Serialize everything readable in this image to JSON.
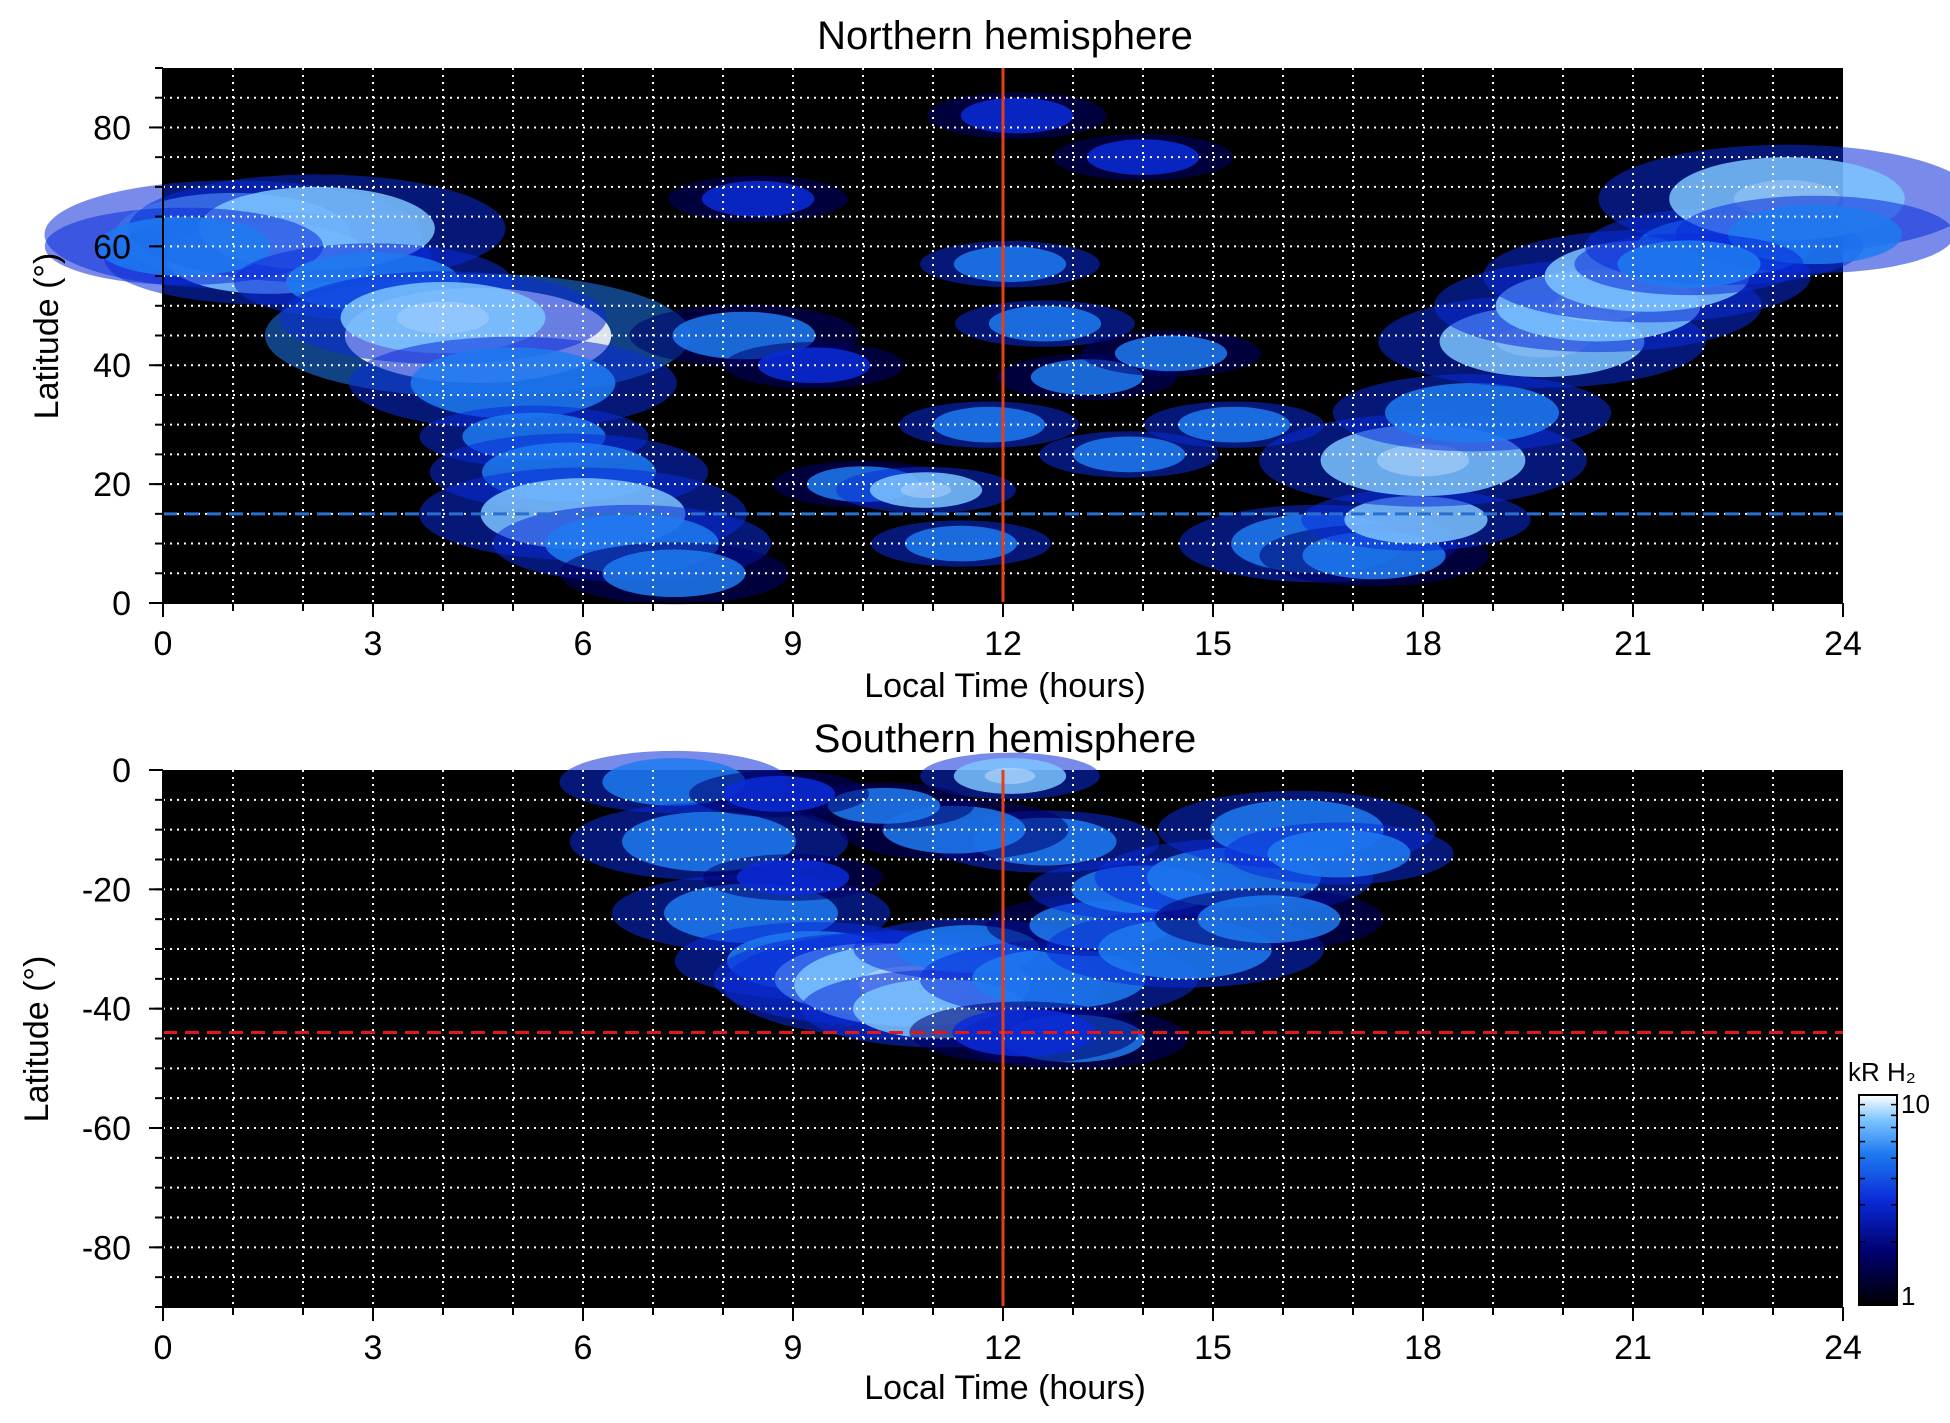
{
  "colors": {
    "background": "#000000",
    "grid": "#ffffff",
    "noon_line": "#e2401c",
    "north_dashed_line": "#2a6fd0",
    "south_dashed_line": "#e01818",
    "colormap": [
      "#000000",
      "#00006e",
      "#0a2bd8",
      "#1f7af0",
      "#7cc4ff",
      "#ffffff"
    ]
  },
  "chart_data": [
    {
      "type": "heatmap",
      "title": "Northern hemisphere",
      "xlabel": "Local Time (hours)",
      "ylabel": "Latitude (°)",
      "xlim": [
        0,
        24
      ],
      "ylim": [
        0,
        90
      ],
      "xticks": [
        0,
        3,
        6,
        9,
        12,
        15,
        18,
        21,
        24
      ],
      "xtick_labels": [
        "0",
        "3",
        "6",
        "9",
        "12",
        "15",
        "18",
        "21",
        "24"
      ],
      "yticks": [
        0,
        20,
        40,
        60,
        80
      ],
      "ytick_labels": [
        "0",
        "20",
        "40",
        "60",
        "80"
      ],
      "grid": true,
      "grid_x_step": 1,
      "grid_y_step": 5,
      "noon_line_x": 12,
      "dashed_line_y": 15,
      "dashed_line_color": "blue",
      "emission_zone": "bright auroral arcs near 60–75° at local times 0–5 and 19–24; patchy emission between 0–55° latitude from about 5 to 18 h",
      "intensity_blobs": [
        [
          1.0,
          62,
          7,
          0.72
        ],
        [
          1.5,
          58,
          6,
          0.75
        ],
        [
          2.2,
          63,
          7,
          0.7
        ],
        [
          0.3,
          60,
          5,
          0.55
        ],
        [
          3.0,
          54,
          5,
          0.6
        ],
        [
          4.5,
          45,
          8,
          0.92
        ],
        [
          4.0,
          48,
          6,
          0.75
        ],
        [
          5.0,
          37,
          6,
          0.62
        ],
        [
          5.3,
          28,
          4,
          0.55
        ],
        [
          5.8,
          22,
          5,
          0.55
        ],
        [
          6.0,
          15,
          6,
          0.7
        ],
        [
          6.7,
          10,
          5,
          0.58
        ],
        [
          7.3,
          5,
          4,
          0.5
        ],
        [
          8.3,
          45,
          4,
          0.5
        ],
        [
          9.3,
          40,
          3,
          0.45
        ],
        [
          10.0,
          20,
          3,
          0.5
        ],
        [
          10.9,
          19,
          3,
          0.8
        ],
        [
          11.4,
          10,
          3,
          0.68
        ],
        [
          11.8,
          30,
          3,
          0.6
        ],
        [
          12.1,
          57,
          3,
          0.62
        ],
        [
          12.6,
          47,
          3,
          0.55
        ],
        [
          13.2,
          38,
          3,
          0.5
        ],
        [
          13.8,
          25,
          3,
          0.55
        ],
        [
          14.4,
          42,
          3,
          0.5
        ],
        [
          15.3,
          30,
          3,
          0.55
        ],
        [
          16.5,
          10,
          5,
          0.55
        ],
        [
          17.3,
          8,
          4,
          0.5
        ],
        [
          17.9,
          14,
          4,
          0.7
        ],
        [
          18.0,
          24,
          6,
          0.82
        ],
        [
          18.7,
          32,
          5,
          0.6
        ],
        [
          19.7,
          44,
          6,
          0.72
        ],
        [
          20.5,
          50,
          6,
          0.75
        ],
        [
          21.2,
          55,
          6,
          0.7
        ],
        [
          22.3,
          60,
          5,
          0.65
        ],
        [
          23.2,
          68,
          7,
          0.75
        ],
        [
          23.6,
          62,
          5,
          0.6
        ],
        [
          21.8,
          57,
          4,
          0.6
        ],
        [
          12.2,
          82,
          3,
          0.3
        ],
        [
          8.5,
          68,
          3,
          0.32
        ],
        [
          14.0,
          75,
          3,
          0.35
        ]
      ]
    },
    {
      "type": "heatmap",
      "title": "Southern hemisphere",
      "xlabel": "Local Time (hours)",
      "ylabel": "Latitude (°)",
      "xlim": [
        0,
        24
      ],
      "ylim": [
        -90,
        0
      ],
      "xticks": [
        0,
        3,
        6,
        9,
        12,
        15,
        18,
        21,
        24
      ],
      "xtick_labels": [
        "0",
        "3",
        "6",
        "9",
        "12",
        "15",
        "18",
        "21",
        "24"
      ],
      "yticks": [
        0,
        -20,
        -40,
        -60,
        -80
      ],
      "ytick_labels": [
        "0",
        "-20",
        "-40",
        "-60",
        "-80"
      ],
      "grid": true,
      "grid_x_step": 1,
      "grid_y_step": 5,
      "noon_line_x": 12,
      "dashed_line_y": -44,
      "dashed_line_color": "red",
      "emission_zone": "patchy emission between 0 and about -48° latitude, local times about 7 to 17.5 h",
      "intensity_blobs": [
        [
          7.3,
          -2,
          4,
          0.6
        ],
        [
          7.8,
          -12,
          5,
          0.62
        ],
        [
          8.4,
          -24,
          5,
          0.6
        ],
        [
          9.3,
          -32,
          5,
          0.62
        ],
        [
          10.2,
          -35,
          6,
          0.78
        ],
        [
          10.7,
          -36,
          7,
          0.88
        ],
        [
          11.1,
          -40,
          5,
          0.7
        ],
        [
          11.5,
          -30,
          4,
          0.55
        ],
        [
          12.1,
          -1,
          3,
          0.85
        ],
        [
          12.6,
          -12,
          4,
          0.55
        ],
        [
          12.8,
          -35,
          5,
          0.62
        ],
        [
          13.4,
          -26,
          4,
          0.5
        ],
        [
          14.0,
          -20,
          4,
          0.55
        ],
        [
          14.6,
          -30,
          5,
          0.6
        ],
        [
          15.3,
          -18,
          5,
          0.62
        ],
        [
          16.2,
          -10,
          5,
          0.65
        ],
        [
          16.8,
          -14,
          4,
          0.55
        ],
        [
          11.3,
          -10,
          4,
          0.5
        ],
        [
          10.3,
          -6,
          3,
          0.5
        ],
        [
          9.0,
          -18,
          3,
          0.45
        ],
        [
          13.0,
          -45,
          4,
          0.5
        ],
        [
          15.8,
          -25,
          4,
          0.5
        ],
        [
          8.8,
          -4,
          3,
          0.45
        ],
        [
          12.3,
          -44,
          4,
          0.45
        ]
      ]
    }
  ],
  "colorbar": {
    "label_units": "kR H₂",
    "max_label": "10",
    "min_label": "1",
    "scale": "log"
  }
}
